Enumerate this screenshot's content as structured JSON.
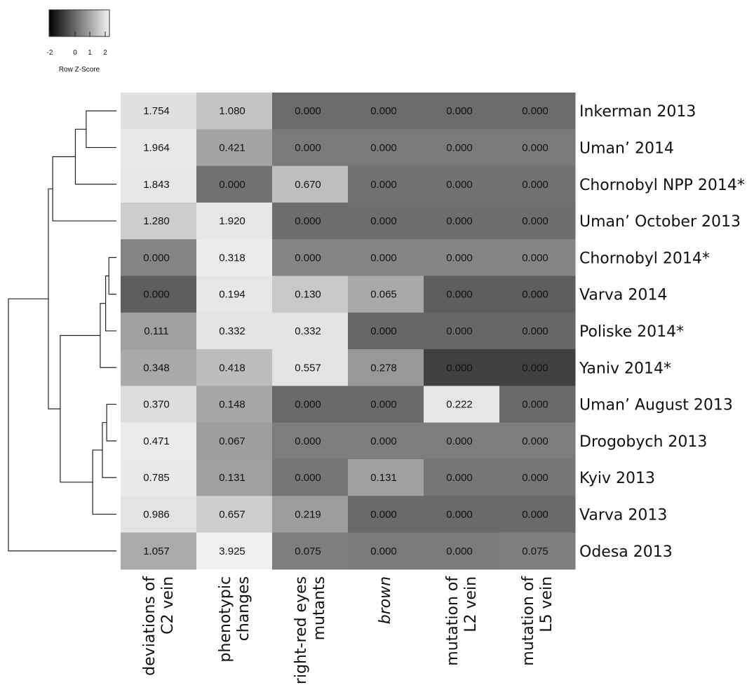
{
  "chart_data": {
    "type": "heatmap",
    "legend": {
      "label": "Row Z-Score",
      "ticks": [
        "-2",
        "0",
        "1",
        "2"
      ],
      "colors": [
        "#000000",
        "#f2f2f2"
      ]
    },
    "columns": [
      {
        "line1": "deviations of",
        "line2": "C2 vein",
        "italic": false
      },
      {
        "line1": "phenotypic",
        "line2": "changes",
        "italic": false
      },
      {
        "line1": "bright-red eyes",
        "line2": "mutants",
        "italic": false
      },
      {
        "line1": "brown",
        "line2": "",
        "italic": true
      },
      {
        "line1": "mutation of",
        "line2": "L2 vein",
        "italic": false
      },
      {
        "line1": "mutation of",
        "line2": "L5 vein",
        "italic": false
      }
    ],
    "rows": [
      {
        "label": "Inkerman 2013",
        "values": [
          "1.754",
          "1.080",
          "0.000",
          "0.000",
          "0.000",
          "0.000"
        ],
        "colors": [
          "#e0e0e0",
          "#c4c4c4",
          "#6b6b6b",
          "#6b6b6b",
          "#6b6b6b",
          "#6b6b6b"
        ]
      },
      {
        "label": "Uman’ 2014",
        "values": [
          "1.964",
          "0.421",
          "0.000",
          "0.000",
          "0.000",
          "0.000"
        ],
        "colors": [
          "#e9e9e9",
          "#a4a4a4",
          "#7a7a7a",
          "#7a7a7a",
          "#7a7a7a",
          "#7a7a7a"
        ]
      },
      {
        "label": "Chornobyl NPP 2014*",
        "values": [
          "1.843",
          "0.000",
          "0.670",
          "0.000",
          "0.000",
          "0.000"
        ],
        "colors": [
          "#e7e7e7",
          "#727272",
          "#bebebe",
          "#727272",
          "#727272",
          "#727272"
        ]
      },
      {
        "label": "Uman’ October 2013",
        "values": [
          "1.280",
          "1.920",
          "0.000",
          "0.000",
          "0.000",
          "0.000"
        ],
        "colors": [
          "#cdcdcd",
          "#e6e6e6",
          "#6d6d6d",
          "#6d6d6d",
          "#6d6d6d",
          "#6d6d6d"
        ]
      },
      {
        "label": "Chornobyl 2014*",
        "values": [
          "0.000",
          "0.318",
          "0.000",
          "0.000",
          "0.000",
          "0.000"
        ],
        "colors": [
          "#858585",
          "#ececec",
          "#858585",
          "#858585",
          "#858585",
          "#858585"
        ]
      },
      {
        "label": "Varva 2014",
        "values": [
          "0.000",
          "0.194",
          "0.130",
          "0.065",
          "0.000",
          "0.000"
        ],
        "colors": [
          "#5e5e5e",
          "#e6e6e6",
          "#c8c8c8",
          "#a9a9a9",
          "#5e5e5e",
          "#5e5e5e"
        ]
      },
      {
        "label": "Poliske 2014*",
        "values": [
          "0.111",
          "0.332",
          "0.332",
          "0.000",
          "0.000",
          "0.000"
        ],
        "colors": [
          "#a0a0a0",
          "#e3e3e3",
          "#e3e3e3",
          "#676767",
          "#676767",
          "#676767"
        ]
      },
      {
        "label": "Yaniv 2014*",
        "values": [
          "0.348",
          "0.418",
          "0.557",
          "0.278",
          "0.000",
          "0.000"
        ],
        "colors": [
          "#a9a9a9",
          "#bdbdbd",
          "#e4e4e4",
          "#989898",
          "#404040",
          "#404040"
        ]
      },
      {
        "label": "Uman’ August 2013",
        "values": [
          "0.370",
          "0.148",
          "0.000",
          "0.000",
          "0.222",
          "0.000"
        ],
        "colors": [
          "#dddddd",
          "#a6a6a6",
          "#6a6a6a",
          "#6a6a6a",
          "#e6e6e6",
          "#6a6a6a"
        ]
      },
      {
        "label": "Drogobych 2013",
        "values": [
          "0.471",
          "0.067",
          "0.000",
          "0.000",
          "0.000",
          "0.000"
        ],
        "colors": [
          "#ebebeb",
          "#9e9e9e",
          "#7d7d7d",
          "#7d7d7d",
          "#7d7d7d",
          "#7d7d7d"
        ]
      },
      {
        "label": "Kyiv 2013",
        "values": [
          "0.785",
          "0.131",
          "0.000",
          "0.131",
          "0.000",
          "0.000"
        ],
        "colors": [
          "#eaeaea",
          "#a0a0a0",
          "#767676",
          "#a0a0a0",
          "#767676",
          "#767676"
        ]
      },
      {
        "label": "Varva 2013",
        "values": [
          "0.986",
          "0.657",
          "0.219",
          "0.000",
          "0.000",
          "0.000"
        ],
        "colors": [
          "#e3e3e3",
          "#cecece",
          "#9d9d9d",
          "#6a6a6a",
          "#6a6a6a",
          "#6a6a6a"
        ]
      },
      {
        "label": "Odesa 2013",
        "values": [
          "1.057",
          "3.925",
          "0.075",
          "0.000",
          "0.000",
          "0.075"
        ],
        "colors": [
          "#aaaaaa",
          "#f0f0f0",
          "#7e7e7e",
          "#7a7a7a",
          "#7a7a7a",
          "#7e7e7e"
        ]
      }
    ],
    "dendrogram": {
      "leaf_order": [
        0,
        1,
        2,
        3,
        4,
        5,
        6,
        7,
        8,
        9,
        10,
        11,
        12
      ],
      "merges": [
        {
          "a": "L0",
          "b": "L1",
          "height": 0.28
        },
        {
          "a": "M0",
          "b": "L2",
          "height": 0.38
        },
        {
          "a": "L4",
          "b": "L5",
          "height": 0.07
        },
        {
          "a": "M2",
          "b": "L6",
          "height": 0.1
        },
        {
          "a": "L8",
          "b": "L9",
          "height": 0.09
        },
        {
          "a": "M4",
          "b": "L10",
          "height": 0.13
        },
        {
          "a": "M3",
          "b": "L7",
          "height": 0.15
        },
        {
          "a": "M5",
          "b": "L11",
          "height": 0.22
        },
        {
          "a": "M6",
          "b": "M7",
          "height": 0.52
        },
        {
          "a": "M1",
          "b": "L3",
          "height": 0.59
        },
        {
          "a": "M9",
          "b": "M8",
          "height": 0.63
        },
        {
          "a": "M10",
          "b": "L12",
          "height": 1.0
        }
      ]
    }
  }
}
